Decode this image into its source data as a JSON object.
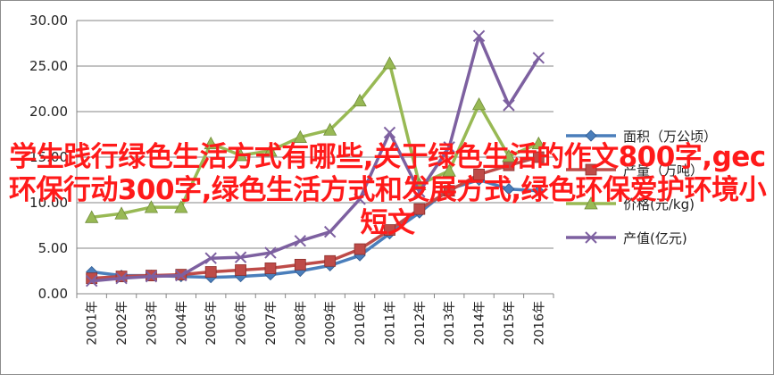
{
  "chart_data": {
    "type": "line",
    "categories": [
      "2001年",
      "2002年",
      "2003年",
      "2004年",
      "2005年",
      "2006年",
      "2007年",
      "2008年",
      "2009年",
      "2010年",
      "2011年",
      "2012年",
      "2013年",
      "2014年",
      "2015年",
      "2016年"
    ],
    "ylim": [
      0,
      30
    ],
    "yticks": [
      "0.00",
      "5.00",
      "10.00",
      "15.00",
      "20.00",
      "25.00",
      "30.00"
    ],
    "grid": true,
    "legend_position": "right",
    "series": [
      {
        "name": "面积（万公顷）",
        "color": "#4a7ebb",
        "marker": "diamond",
        "values": [
          2.4,
          2.0,
          2.0,
          1.9,
          1.8,
          1.9,
          2.1,
          2.5,
          3.1,
          4.2,
          6.6,
          8.9,
          11.5,
          12.5,
          11.5,
          11.3
        ]
      },
      {
        "name": "产量（万吨）",
        "color": "#be4b48",
        "marker": "square",
        "values": [
          1.7,
          1.9,
          2.0,
          2.1,
          2.4,
          2.6,
          2.8,
          3.2,
          3.6,
          4.9,
          7.0,
          9.3,
          11.3,
          13.1,
          14.1,
          15.0
        ]
      },
      {
        "name": "价格(元/kg)",
        "color": "#98b954",
        "marker": "triangle",
        "values": [
          8.4,
          8.8,
          9.5,
          9.5,
          16.5,
          15.2,
          15.7,
          17.2,
          18.0,
          21.2,
          25.3,
          12.0,
          13.5,
          20.8,
          15.1,
          16.5
        ]
      },
      {
        "name": "产值(亿元)",
        "color": "#7d60a0",
        "marker": "x",
        "values": [
          1.4,
          1.7,
          1.9,
          2.0,
          3.9,
          4.0,
          4.5,
          5.8,
          6.8,
          10.4,
          17.7,
          11.2,
          16.1,
          28.3,
          20.7,
          25.9
        ]
      }
    ]
  },
  "overlay_caption": "学生践行绿色生活方式有哪些,关于绿色生活的作文800字,gec环保行动300字,绿色生活方式和发展方式,绿色环保爱护环境小短文"
}
